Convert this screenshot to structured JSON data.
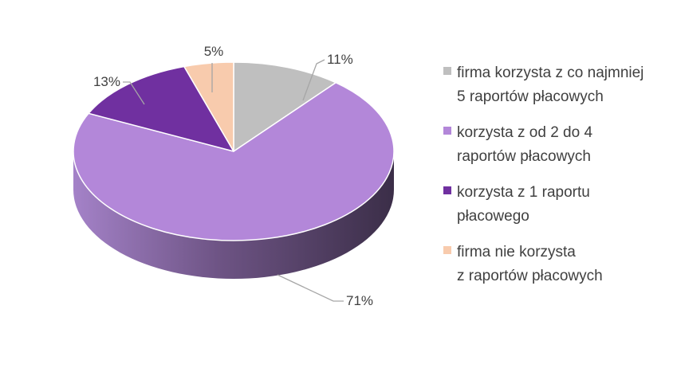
{
  "chart_data": {
    "type": "pie",
    "three_d": true,
    "title": "",
    "slices": [
      {
        "label": "firma korzysta z co najmniej 5 raportów płacowych",
        "legend_lines": [
          "firma korzysta z co najmniej",
          "5 raportów płacowych"
        ],
        "value": 11,
        "value_label": "11%",
        "color": "#bfbfbf"
      },
      {
        "label": "korzysta z od 2 do 4 raportów płacowych",
        "legend_lines": [
          "korzysta z od 2 do 4",
          "raportów płacowych"
        ],
        "value": 71,
        "value_label": "71%",
        "color": "#b387d9"
      },
      {
        "label": "korzysta z 1 raportu płacowego",
        "legend_lines": [
          "korzysta z 1 raportu",
          "płacowego"
        ],
        "value": 13,
        "value_label": "13%",
        "color": "#7030a0"
      },
      {
        "label": "firma nie korzysta z raportów płacowych",
        "legend_lines": [
          "firma nie korzysta",
          "z raportów płacowych"
        ],
        "value": 5,
        "value_label": "5%",
        "color": "#f8cbad"
      }
    ],
    "legend_position": "right"
  }
}
